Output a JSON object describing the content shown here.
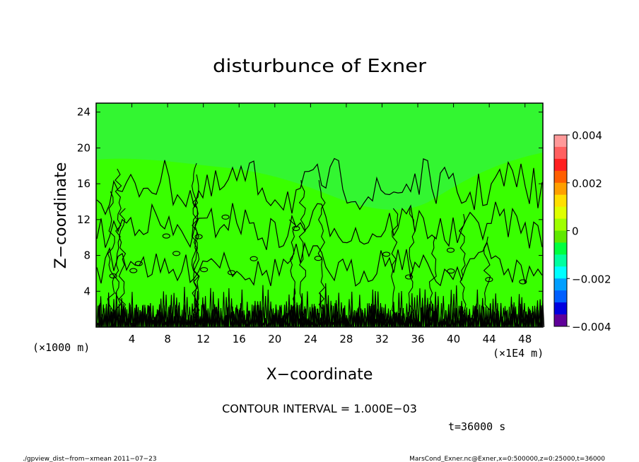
{
  "chart_data": {
    "type": "heatmap",
    "title": "disturbunce of Exner",
    "xlabel": "X−coordinate",
    "ylabel": "Z−coordinate",
    "x_unit_label": "(×1E4 m)",
    "y_unit_label": "(×1000 m)",
    "xlim": [
      0,
      50
    ],
    "ylim": [
      0,
      25
    ],
    "x_ticks": [
      "4",
      "8",
      "12",
      "16",
      "20",
      "24",
      "28",
      "32",
      "36",
      "40",
      "44",
      "48"
    ],
    "y_ticks": [
      "4",
      "8",
      "12",
      "16",
      "20",
      "24"
    ],
    "colorbar": {
      "range": [
        -0.004,
        0.004
      ],
      "labels": [
        "0.004",
        "0.002",
        "0",
        "−0.002",
        "−0.004"
      ],
      "colors": [
        "#ff9999",
        "#ff5f5f",
        "#ff1f1f",
        "#ff5f00",
        "#ff9f00",
        "#ffdf00",
        "#dfff00",
        "#9fff00",
        "#5fe800",
        "#00ff3f",
        "#00ff9f",
        "#00ffff",
        "#009fff",
        "#005fff",
        "#0000df",
        "#5f0099"
      ]
    },
    "dominant_color": "#39ff00",
    "contour_interval": "CONTOUR INTERVAL = 1.000E−03",
    "time_label": "t=36000 s"
  },
  "footer": {
    "left": "./gpview_dist−from−xmean   2011−07−23",
    "right": "MarsCond_Exner.nc@Exner,x=0:500000,z=0:25000,t=36000"
  }
}
